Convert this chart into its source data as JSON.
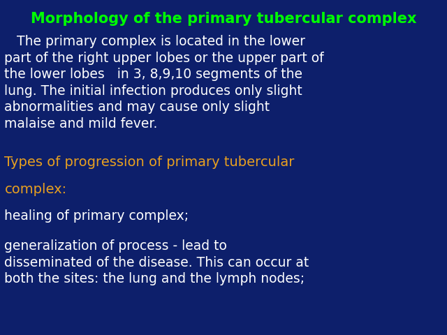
{
  "background_color": "#0d1f6b",
  "title": "Morphology of the primary tubercular complex",
  "title_color": "#00ff00",
  "title_fontsize": 15,
  "body_text": "   The primary complex is located in the lower\npart of the right upper lobes or the upper part of\nthe lower lobes   in 3, 8,9,10 segments of the\nlung. The initial infection produces only slight\nabnormalities and may cause only slight\nmalaise and mild fever.",
  "body_color": "#ffffff",
  "body_fontsize": 13.5,
  "subtitle1": "Types of progression of primary tubercular",
  "subtitle2": "complex:",
  "subtitle_color": "#e8a020",
  "subtitle_fontsize": 14,
  "line1": "healing of primary complex;",
  "line1_color": "#ffffff",
  "line1_fontsize": 13.5,
  "line2": "generalization of process - lead to\ndisseminated of the disease. This can occur at\nboth the sites: the lung and the lymph nodes;",
  "line2_color": "#ffffff",
  "line2_fontsize": 13.5
}
